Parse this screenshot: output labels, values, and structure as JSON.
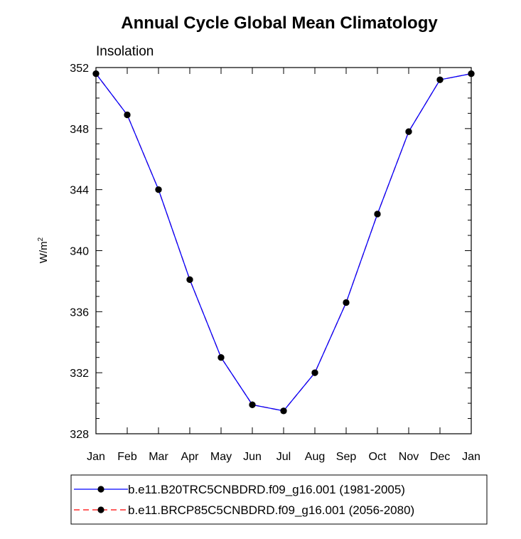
{
  "chart_data": {
    "type": "line",
    "title": "Annual Cycle Global Mean Climatology",
    "subtitle": "Insolation",
    "ylabel": "W/m",
    "ylabel_sup": "2",
    "xlabel": "",
    "categories": [
      "Jan",
      "Feb",
      "Mar",
      "Apr",
      "May",
      "Jun",
      "Jul",
      "Aug",
      "Sep",
      "Oct",
      "Nov",
      "Dec",
      "Jan"
    ],
    "ylim": [
      328,
      352
    ],
    "yticks": [
      328,
      332,
      336,
      340,
      344,
      348,
      352
    ],
    "ytick_labels": [
      "328",
      "332",
      "336",
      "340",
      "344",
      "348",
      "352"
    ],
    "grid": false,
    "series": [
      {
        "name": "b.e11.B20TRC5CNBDRD.f09_g16.001 (1981-2005)",
        "color": "#0000ff",
        "dash": "solid",
        "marker": "filled-circle",
        "values": [
          351.6,
          348.9,
          344.0,
          338.1,
          333.0,
          329.9,
          329.5,
          332.0,
          336.6,
          342.4,
          347.8,
          351.2,
          351.6
        ]
      },
      {
        "name": "b.e11.BRCP85C5CNBDRD.f09_g16.001 (2056-2080)",
        "color": "#ff0000",
        "dash": "dashed",
        "marker": "filled-circle",
        "values": [
          351.6,
          348.9,
          344.0,
          338.1,
          333.0,
          329.9,
          329.5,
          332.0,
          336.6,
          342.4,
          347.8,
          351.2,
          351.6
        ]
      }
    ],
    "legend_position": "bottom"
  }
}
